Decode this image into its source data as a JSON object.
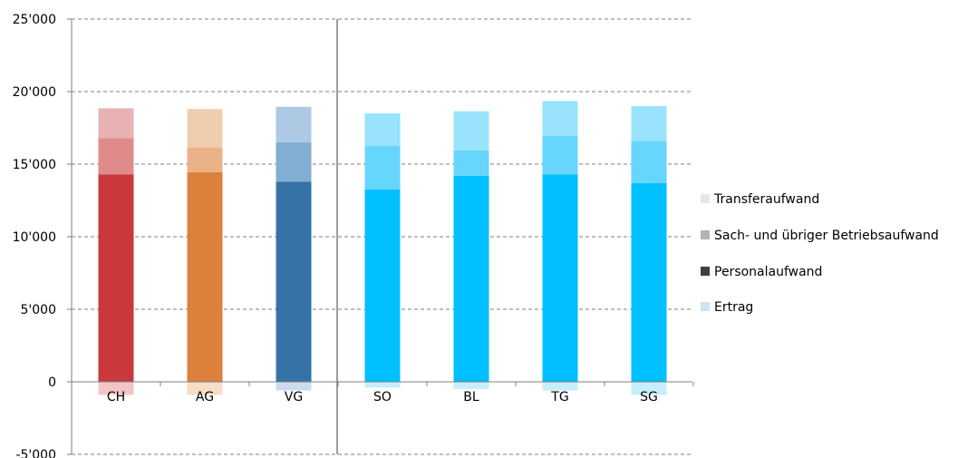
{
  "chart_data": {
    "type": "bar",
    "stacked": true,
    "categories": [
      "CH",
      "AG",
      "VG",
      "SO",
      "BL",
      "TG",
      "SG"
    ],
    "ylim": [
      -5000,
      25000
    ],
    "yticks": [
      -5000,
      0,
      5000,
      10000,
      15000,
      20000,
      25000
    ],
    "ytick_labels": [
      "-5'000",
      "0",
      "5'000",
      "10'000",
      "15'000",
      "20'000",
      "25'000"
    ],
    "grid": true,
    "separator_after_category": "VG",
    "legend_position": "right",
    "series": [
      {
        "name": "Ertrag",
        "values": [
          -900,
          -900,
          -600,
          -400,
          -500,
          -600,
          -900
        ]
      },
      {
        "name": "Personalaufwand",
        "values": [
          14300,
          14450,
          13800,
          13250,
          14200,
          14300,
          13700
        ]
      },
      {
        "name": "Sach- und übriger Betriebsaufwand",
        "values": [
          2500,
          1700,
          2700,
          3000,
          1750,
          2650,
          2900
        ]
      },
      {
        "name": "Transferaufwand",
        "values": [
          2050,
          2650,
          2450,
          2250,
          2700,
          2400,
          2400
        ]
      }
    ],
    "category_colors": {
      "CH": {
        "ertrag": "#f3c6c6",
        "personal": "#c9383a",
        "sach": "#df8b8c",
        "transfer": "#e8b2b2"
      },
      "AG": {
        "ertrag": "#f7dcc6",
        "personal": "#dc803c",
        "sach": "#ebb287",
        "transfer": "#f1cdb0"
      },
      "VG": {
        "ertrag": "#cddcec",
        "personal": "#3573a6",
        "sach": "#82aed3",
        "transfer": "#adc9e3"
      },
      "SO": {
        "ertrag": "#c7eefb",
        "personal": "#00bfff",
        "sach": "#66d6fc",
        "transfer": "#99e3fd"
      },
      "BL": {
        "ertrag": "#c7eefb",
        "personal": "#00bfff",
        "sach": "#66d6fc",
        "transfer": "#99e3fd"
      },
      "TG": {
        "ertrag": "#c7eefb",
        "personal": "#00bfff",
        "sach": "#66d6fc",
        "transfer": "#99e3fd"
      },
      "SG": {
        "ertrag": "#c7eefb",
        "personal": "#00bfff",
        "sach": "#66d6fc",
        "transfer": "#99e3fd"
      }
    },
    "legend": [
      {
        "label": "Transferaufwand",
        "color": "#e6e6e6"
      },
      {
        "label": "Sach- und übriger Betriebsaufwand",
        "color": "#b3b3b3"
      },
      {
        "label": "Personalaufwand",
        "color": "#404040"
      },
      {
        "label": "Ertrag",
        "color": "#cce4f5"
      }
    ]
  }
}
